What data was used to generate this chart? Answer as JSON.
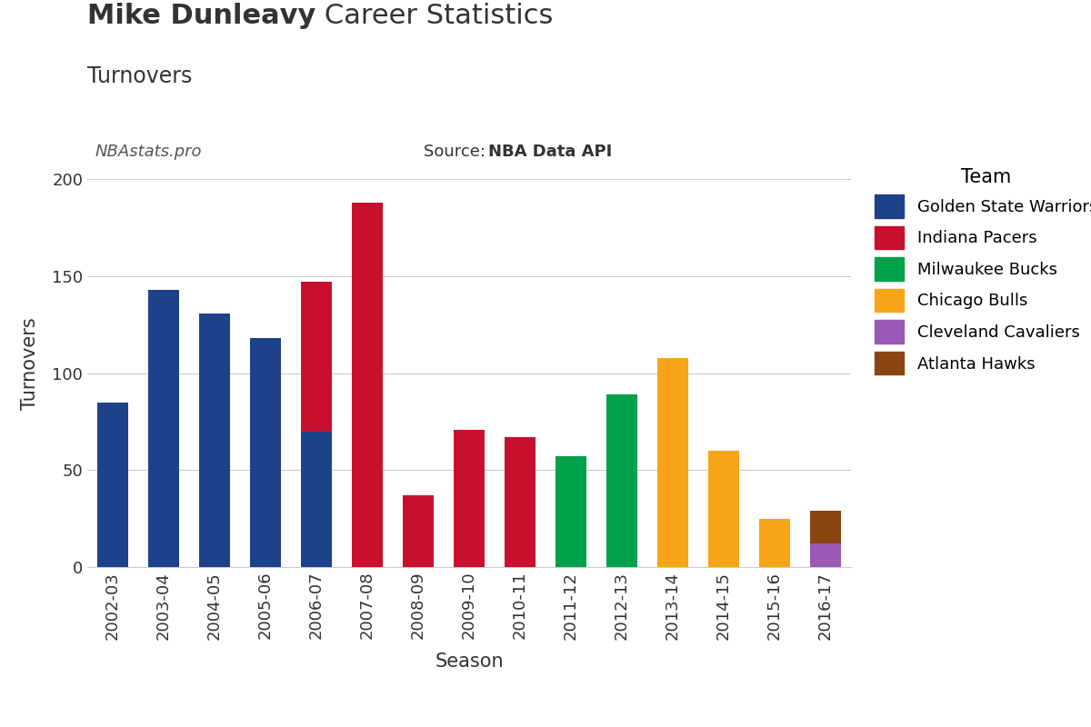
{
  "seasons": [
    "2002-03",
    "2003-04",
    "2004-05",
    "2005-06",
    "2006-07",
    "2007-08",
    "2008-09",
    "2009-10",
    "2010-11",
    "2011-12",
    "2012-13",
    "2013-14",
    "2014-15",
    "2015-16",
    "2016-17"
  ],
  "teams": {
    "Golden State Warriors": {
      "color": "#1D428A",
      "values": [
        85,
        143,
        131,
        118,
        70,
        0,
        0,
        0,
        0,
        0,
        0,
        0,
        0,
        0,
        0
      ]
    },
    "Indiana Pacers": {
      "color": "#C8102E",
      "values": [
        0,
        0,
        0,
        0,
        77,
        188,
        37,
        71,
        67,
        0,
        0,
        0,
        0,
        0,
        0
      ]
    },
    "Milwaukee Bucks": {
      "color": "#00A14B",
      "values": [
        0,
        0,
        0,
        0,
        0,
        0,
        0,
        0,
        0,
        57,
        89,
        0,
        0,
        0,
        0
      ]
    },
    "Chicago Bulls": {
      "color": "#F7A418",
      "values": [
        0,
        0,
        0,
        0,
        0,
        0,
        0,
        0,
        0,
        0,
        0,
        108,
        60,
        25,
        0
      ]
    },
    "Cleveland Cavaliers": {
      "color": "#9B59B6",
      "values": [
        0,
        0,
        0,
        0,
        0,
        0,
        0,
        0,
        0,
        0,
        0,
        0,
        0,
        0,
        12
      ]
    },
    "Atlanta Hawks": {
      "color": "#8B4513",
      "values": [
        0,
        0,
        0,
        0,
        0,
        0,
        0,
        0,
        0,
        0,
        0,
        0,
        0,
        0,
        17
      ]
    }
  },
  "title_bold": "Mike Dunleavy",
  "title_normal": " Career Statistics",
  "subtitle": "Turnovers",
  "ylabel": "Turnovers",
  "xlabel": "Season",
  "watermark": "NBAstats.pro",
  "source_label": "Source: ",
  "source_bold": "NBA Data API",
  "ylim": [
    0,
    210
  ],
  "yticks": [
    0,
    50,
    100,
    150,
    200
  ],
  "background_color": "#FFFFFF",
  "legend_title": "Team",
  "text_color": "#333333"
}
